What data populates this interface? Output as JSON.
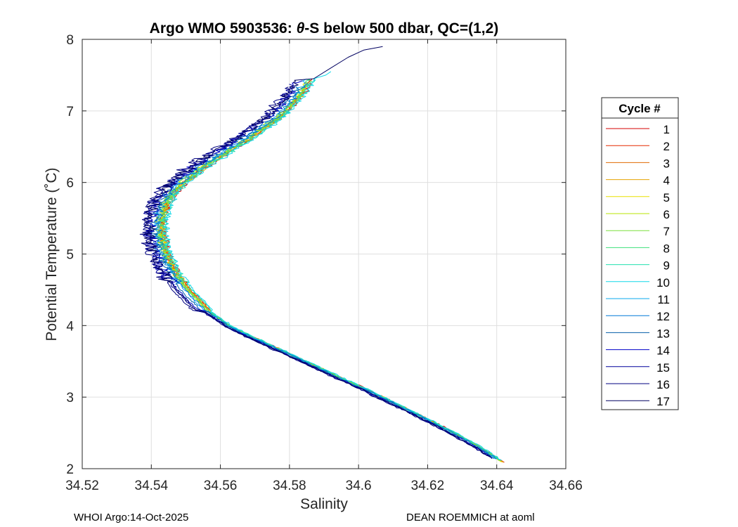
{
  "chart_data": {
    "type": "line",
    "title_prefix": "Argo WMO 5903536: ",
    "title_symbol": "θ",
    "title_suffix": "-S below 500 dbar,  QC=(1,2)",
    "xlabel": "Salinity",
    "ylabel": "Potential Temperature (˚C)",
    "xlim": [
      34.52,
      34.66
    ],
    "ylim": [
      2,
      8
    ],
    "xticks": [
      "34.52",
      "34.54",
      "34.56",
      "34.58",
      "34.6",
      "34.62",
      "34.64",
      "34.66"
    ],
    "yticks": [
      "2",
      "3",
      "4",
      "5",
      "6",
      "7",
      "8"
    ],
    "grid": true,
    "legend": {
      "title": "Cycle #",
      "position": "right outside",
      "entries": [
        "1",
        "2",
        "3",
        "4",
        "5",
        "6",
        "7",
        "8",
        "9",
        "10",
        "11",
        "12",
        "13",
        "14",
        "15",
        "16",
        "17"
      ]
    },
    "colors": [
      "#d40000",
      "#e62a00",
      "#e06a00",
      "#e6a200",
      "#e8e000",
      "#b8e600",
      "#7ce03c",
      "#3ee07a",
      "#22e0b0",
      "#10d8e8",
      "#0aa8ee",
      "#0078d8",
      "#005ca8",
      "#0000c8",
      "#00009c",
      "#000080",
      "#000060"
    ],
    "base_profile": {
      "T": [
        2.08,
        2.3,
        2.5,
        2.7,
        2.9,
        3.1,
        3.3,
        3.5,
        3.7,
        3.9,
        4.0,
        4.1,
        4.2,
        4.35,
        4.5,
        4.65,
        4.8,
        4.95,
        5.1,
        5.25,
        5.4,
        5.55,
        5.7,
        5.85,
        6.0,
        6.15,
        6.3,
        6.45,
        6.6,
        6.75,
        6.9,
        7.05,
        7.2,
        7.35,
        7.45
      ],
      "S": [
        34.642,
        34.635,
        34.6275,
        34.6195,
        34.611,
        34.6025,
        34.5935,
        34.5845,
        34.5755,
        34.5665,
        34.5625,
        34.5595,
        34.5565,
        34.5535,
        34.5505,
        34.548,
        34.546,
        34.5445,
        34.5435,
        34.5428,
        34.5425,
        34.543,
        34.544,
        34.546,
        34.549,
        34.553,
        34.5575,
        34.5625,
        34.5675,
        34.572,
        34.5765,
        34.5795,
        34.5825,
        34.5845,
        34.586
      ]
    },
    "series": [
      {
        "name": "1",
        "salinity_offset": 0.0006,
        "tmax": 7.45
      },
      {
        "name": "2",
        "salinity_offset": 0.0004,
        "tmax": 7.42
      },
      {
        "name": "3",
        "salinity_offset": 0.0002,
        "tmax": 7.4
      },
      {
        "name": "4",
        "salinity_offset": 0.0004,
        "tmax": 7.35
      },
      {
        "name": "5",
        "salinity_offset": 0.0,
        "tmax": 7.4
      },
      {
        "name": "6",
        "salinity_offset": -0.0002,
        "tmax": 7.38
      },
      {
        "name": "7",
        "salinity_offset": 0.0002,
        "tmax": 7.42
      },
      {
        "name": "8",
        "salinity_offset": 0.0,
        "tmax": 7.45
      },
      {
        "name": "9",
        "salinity_offset": 0.0008,
        "tmax": 7.5
      },
      {
        "name": "10",
        "salinity_offset": 0.001,
        "tmax": 7.55
      },
      {
        "name": "11",
        "salinity_offset": -0.0006,
        "tmax": 7.45
      },
      {
        "name": "12",
        "salinity_offset": -0.0004,
        "tmax": 7.4
      },
      {
        "name": "13",
        "salinity_offset": -0.0012,
        "tmax": 7.35
      },
      {
        "name": "14",
        "salinity_offset": -0.0018,
        "tmax": 7.42
      },
      {
        "name": "15",
        "salinity_offset": -0.0022,
        "tmax": 7.38
      },
      {
        "name": "16",
        "salinity_offset": -0.0028,
        "tmax": 7.35
      },
      {
        "name": "17",
        "salinity_offset": -0.002,
        "tmax": 7.9
      }
    ],
    "top_extension_cycle_17": {
      "T": [
        7.45,
        7.6,
        7.75,
        7.85,
        7.9
      ],
      "S": [
        34.587,
        34.592,
        34.597,
        34.6015,
        34.607
      ]
    },
    "top_extension_cycle_10": {
      "T": [
        7.45,
        7.5,
        7.55
      ],
      "S": [
        34.587,
        34.5905,
        34.592
      ]
    }
  },
  "footer": {
    "left": "WHOI Argo:14-Oct-2025",
    "right": "DEAN ROEMMICH at aoml"
  }
}
